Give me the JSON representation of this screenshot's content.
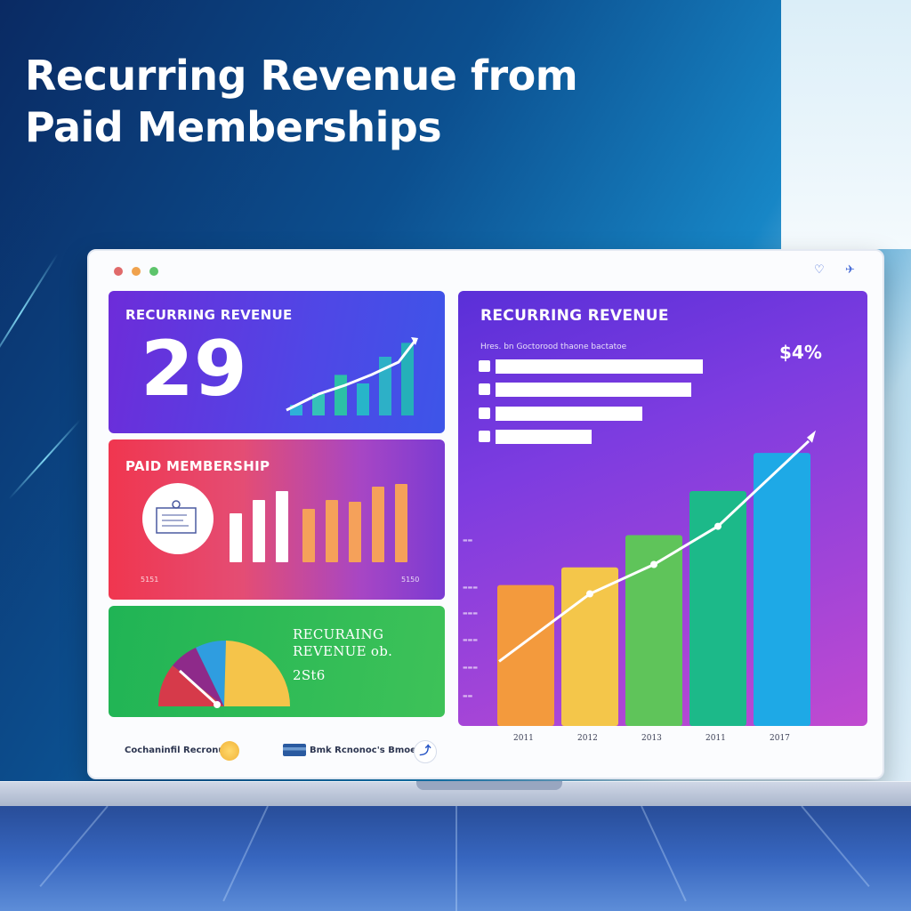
{
  "headline": {
    "line1": "Recurring Revenue from",
    "line2": "Paid Memberships"
  },
  "window": {
    "dots": [
      "#e06a6a",
      "#f0a24d",
      "#5dc46b"
    ],
    "icon_right_1": "heart-icon",
    "icon_right_2": "plane-icon"
  },
  "card_recurring": {
    "title": "RECURRING REVENUE",
    "value": "29"
  },
  "card_paid": {
    "title": "PAID MEMBERSHIP",
    "left_label": "5151",
    "right_label": "5150"
  },
  "card_green": {
    "title_line1": "RECURAING",
    "title_line2": "REVENUE ob.",
    "value": "2St6"
  },
  "main_chart": {
    "title": "RECURRING REVENUE",
    "subtitle": "Hres. bn Goctorood thaone bactatoe",
    "percent": "$4%"
  },
  "footer": {
    "left_label": "Cochaninfil Recronuc",
    "middle_label": "Bmk Rcnonoc's Bmoe"
  },
  "chart_data": {
    "type": "bar",
    "categories": [
      "2011",
      "2012",
      "2013",
      "2011",
      "2017"
    ],
    "values": [
      48,
      54,
      65,
      80,
      93
    ],
    "line": [
      22,
      45,
      55,
      68,
      94
    ],
    "colors": [
      "#f39a3d",
      "#f4c64a",
      "#5fc45a",
      "#1cb989",
      "#1ea9e6"
    ],
    "ylim": [
      0,
      100
    ]
  },
  "mini_bars_top": [
    10,
    20,
    38,
    30,
    55,
    68
  ],
  "mini_bars_paid": [
    55,
    70,
    80,
    60,
    70,
    68,
    85,
    88
  ],
  "gauge_colors": [
    "#d63a4a",
    "#8e2a8a",
    "#2f9de0",
    "#f5c44a"
  ]
}
